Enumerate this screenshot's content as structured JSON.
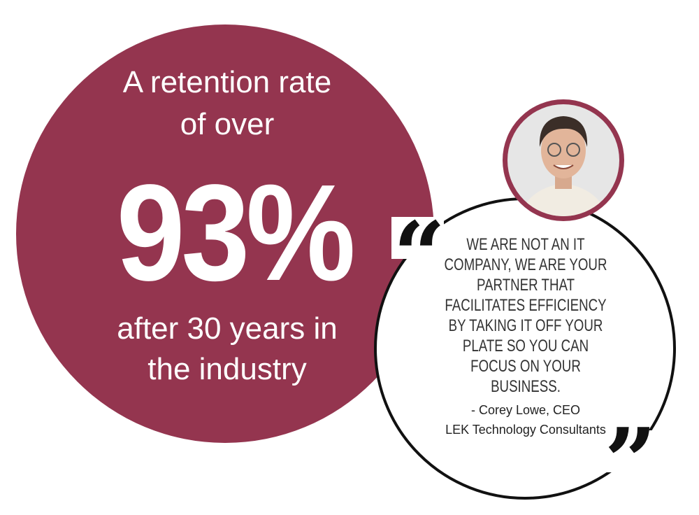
{
  "stat": {
    "intro_lines": [
      "A retention rate",
      "of over"
    ],
    "figure": "93%",
    "outro_lines": [
      "after 30 years in",
      "the industry"
    ]
  },
  "quote": {
    "open_mark": "“",
    "close_mark": "”",
    "lines": [
      "WE ARE NOT AN IT",
      "COMPANY, WE ARE YOUR",
      "PARTNER THAT",
      "FACILITATES EFFICIENCY",
      "BY TAKING IT OFF YOUR",
      "PLATE SO YOU CAN",
      "FOCUS ON YOUR",
      "BUSINESS."
    ],
    "attribution": [
      "- Corey Lowe, CEO",
      "LEK Technology Consultants"
    ]
  }
}
